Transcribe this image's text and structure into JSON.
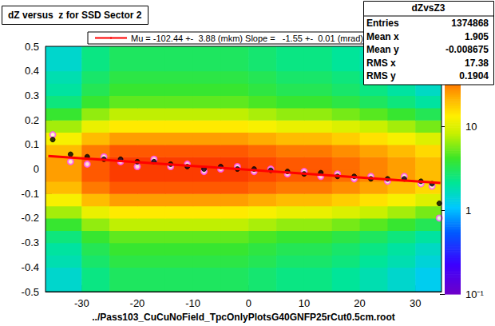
{
  "chart_data": {
    "type": "heatmap",
    "title": "dZ versus  z for SSD Sector 2",
    "x_label": "../Pass103_CuCuNoField_TpcOnlyPlotsG40GNFP25rCut0.5cm.root",
    "xlim": [
      -36.5,
      34.7
    ],
    "xticks": [
      -30,
      -20,
      -10,
      0,
      10,
      20,
      30
    ],
    "ylim": [
      -0.5,
      0.5
    ],
    "yticks": [
      -0.5,
      -0.4,
      -0.3,
      -0.2,
      -0.1,
      0,
      0.1,
      0.2,
      0.3,
      0.4,
      0.5
    ],
    "grid": false,
    "legend": "top",
    "x_bins": [
      -36.5,
      -30,
      -25,
      -20,
      -15,
      -10,
      -5,
      0,
      5,
      10,
      15,
      20,
      25,
      30,
      34.7
    ],
    "y_bins": [
      -0.5,
      -0.45,
      -0.4,
      -0.35,
      -0.3,
      -0.25,
      -0.2,
      -0.15,
      -0.1,
      -0.05,
      0,
      0.05,
      0.1,
      0.15,
      0.2,
      0.25,
      0.3,
      0.35,
      0.4,
      0.45,
      0.5
    ],
    "cells": [
      [
        1.5,
        2.4,
        3,
        3,
        3,
        3,
        3,
        2.7,
        2.4,
        2.4,
        2.1,
        1.8,
        1.5,
        1.2
      ],
      [
        1.5,
        2.4,
        3,
        3,
        3,
        3,
        3,
        2.7,
        2.4,
        2.4,
        2.1,
        1.8,
        1.5,
        1.2
      ],
      [
        1.8,
        2.8,
        3.5,
        3.5,
        3.5,
        3.5,
        3.5,
        3.2,
        2.8,
        2.8,
        2.5,
        2.1,
        1.8,
        1.4
      ],
      [
        2,
        3.2,
        4,
        4,
        4,
        4,
        4,
        3.6,
        3.2,
        3.2,
        2.8,
        2.4,
        2,
        1.6
      ],
      [
        2.5,
        4,
        5,
        5,
        5,
        5,
        5,
        4.5,
        4,
        4,
        3.5,
        3,
        2.5,
        2
      ],
      [
        4,
        6.4,
        8,
        8,
        8,
        8,
        8,
        7.2,
        6.4,
        6.4,
        5.6,
        4.8,
        4,
        3.2
      ],
      [
        7,
        11.2,
        14,
        14,
        14,
        14,
        14,
        12.6,
        11.2,
        11.2,
        9.8,
        8.4,
        7,
        5.6
      ],
      [
        12.5,
        20,
        25,
        25,
        25,
        25,
        25,
        22.5,
        20,
        20,
        17.5,
        15,
        12.5,
        10
      ],
      [
        20,
        32,
        40,
        40,
        40,
        40,
        40,
        36,
        32,
        32,
        28,
        24,
        20,
        16
      ],
      [
        25,
        40,
        50,
        50,
        50,
        50,
        50,
        45,
        40,
        40,
        35,
        30,
        25,
        20
      ],
      [
        25,
        40,
        50,
        50,
        50,
        50,
        50,
        45,
        40,
        40,
        35,
        30,
        25,
        20
      ],
      [
        20,
        32,
        40,
        40,
        40,
        40,
        40,
        36,
        32,
        32,
        28,
        24,
        20,
        16
      ],
      [
        12.5,
        20,
        25,
        25,
        25,
        25,
        25,
        22.5,
        20,
        20,
        17.5,
        15,
        12.5,
        10
      ],
      [
        7,
        11.2,
        14,
        14,
        14,
        14,
        14,
        12.6,
        11.2,
        11.2,
        9.8,
        8.4,
        7,
        5.6
      ],
      [
        4,
        6.4,
        8,
        8,
        8,
        8,
        8,
        7.2,
        6.4,
        6.4,
        5.6,
        4.8,
        4,
        3.2
      ],
      [
        2.5,
        4,
        5,
        5,
        5,
        5,
        5,
        4.5,
        4,
        4,
        3.5,
        3,
        2.5,
        2
      ],
      [
        2,
        3.2,
        4,
        4,
        4,
        4,
        4,
        3.6,
        3.2,
        3.2,
        2.8,
        2.4,
        2,
        1.6
      ],
      [
        1.8,
        2.8,
        3.5,
        3.5,
        3.5,
        3.5,
        3.5,
        3.2,
        2.8,
        2.8,
        2.5,
        2.1,
        1.8,
        1.4
      ],
      [
        1.5,
        2.4,
        3,
        3,
        3,
        3,
        3,
        2.7,
        2.4,
        2.4,
        2.1,
        1.8,
        1.5,
        1.2
      ],
      [
        1.5,
        2.4,
        3,
        3,
        3,
        3,
        3,
        2.7,
        2.4,
        2.4,
        2.1,
        1.8,
        1.5,
        1.2
      ]
    ],
    "color_scale": {
      "log": true,
      "zlim": [
        0.1,
        90
      ],
      "zticks": [
        {
          "value": 0.1,
          "label": "10⁻¹"
        },
        1,
        10
      ]
    },
    "stats": {
      "title": "dZvsZ3",
      "rows": [
        {
          "label": "Entries",
          "value": 1374868
        },
        {
          "label": "Mean x",
          "value": 1.905
        },
        {
          "label": "Mean y",
          "value": -0.008675
        },
        {
          "label": "RMS x",
          "value": 17.38
        },
        {
          "label": "RMS y",
          "value": 0.1904
        }
      ]
    },
    "series": [
      {
        "type": "scatter",
        "marker": "open_circle",
        "color": "#ff55ff",
        "x": [
          -35.2,
          -32,
          -29,
          -26,
          -23,
          -20,
          -17,
          -14,
          -11,
          -8,
          -5,
          -2,
          1,
          4,
          7,
          10,
          13,
          16,
          19,
          22,
          25,
          28,
          31,
          33,
          34.3
        ],
        "values": [
          0.14,
          0.03,
          0.02,
          0.05,
          0.03,
          0.01,
          0.04,
          0.01,
          0.02,
          -0.01,
          0.0,
          0.01,
          -0.01,
          0.0,
          -0.02,
          -0.01,
          -0.03,
          -0.02,
          -0.04,
          -0.03,
          -0.05,
          -0.03,
          -0.06,
          -0.07,
          -0.2
        ]
      },
      {
        "type": "scatter",
        "marker": "filled_circle",
        "color": "#000000",
        "x": [
          -35.2,
          -32,
          -29,
          -26,
          -23,
          -20,
          -17,
          -14,
          -11,
          -8,
          -5,
          -2,
          1,
          4,
          7,
          10,
          13,
          16,
          19,
          22,
          25,
          28,
          31,
          33,
          34.3
        ],
        "values": [
          0.12,
          0.06,
          0.05,
          0.04,
          0.04,
          0.03,
          0.03,
          0.02,
          0.01,
          0.0,
          0.01,
          0.0,
          0.0,
          -0.005,
          -0.01,
          -0.02,
          -0.015,
          -0.03,
          -0.03,
          -0.04,
          -0.04,
          -0.04,
          -0.05,
          -0.06,
          -0.14
        ]
      },
      {
        "type": "line",
        "name": "Mu = -102.44 +-  3.88 (mkm) Slope =   -1.55 +-  0.01 (mrad)",
        "color": "#ff0000",
        "marker": "none",
        "line_style": "solid",
        "x": [
          -36,
          34.5
        ],
        "values": [
          0.053,
          -0.057
        ]
      }
    ]
  }
}
